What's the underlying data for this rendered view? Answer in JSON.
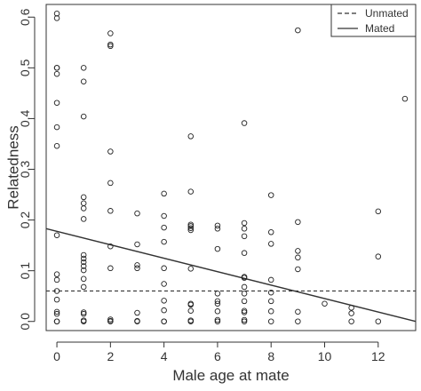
{
  "chart_data": {
    "type": "scatter",
    "title": "",
    "xlabel": "Male age at mate",
    "ylabel": "Relatedness",
    "xlim": [
      -0.4,
      13.4
    ],
    "ylim": [
      -0.018,
      0.625
    ],
    "x_ticks": [
      0,
      2,
      4,
      6,
      8,
      10,
      12
    ],
    "y_ticks": [
      0.0,
      0.1,
      0.2,
      0.3,
      0.4,
      0.5,
      0.6
    ],
    "y_tick_labels": [
      "0.0",
      "0.1",
      "0.2",
      "0.3",
      "0.4",
      "0.5",
      "0.6"
    ],
    "grid": false,
    "legend": {
      "position": "top-right",
      "entries": [
        {
          "label": "Unmated",
          "style": "dashed"
        },
        {
          "label": "Mated",
          "style": "solid"
        }
      ]
    },
    "points": [
      [
        0,
        0.607
      ],
      [
        0,
        0.598
      ],
      [
        0,
        0.5
      ],
      [
        0,
        0.5
      ],
      [
        0,
        0.488
      ],
      [
        0,
        0.431
      ],
      [
        0,
        0.383
      ],
      [
        0,
        0.346
      ],
      [
        0,
        0.17
      ],
      [
        0,
        0.093
      ],
      [
        0,
        0.082
      ],
      [
        0,
        0.06
      ],
      [
        0,
        0.043
      ],
      [
        0,
        0.019
      ],
      [
        0,
        0.015
      ],
      [
        0,
        0.0
      ],
      [
        0,
        0.0
      ],
      [
        1,
        0.5
      ],
      [
        1,
        0.473
      ],
      [
        1,
        0.404
      ],
      [
        1,
        0.245
      ],
      [
        1,
        0.233
      ],
      [
        1,
        0.223
      ],
      [
        1,
        0.202
      ],
      [
        1,
        0.131
      ],
      [
        1,
        0.124
      ],
      [
        1,
        0.117
      ],
      [
        1,
        0.109
      ],
      [
        1,
        0.101
      ],
      [
        1,
        0.084
      ],
      [
        1,
        0.068
      ],
      [
        1,
        0.018
      ],
      [
        1,
        0.015
      ],
      [
        1,
        0.002
      ],
      [
        1,
        0.0
      ],
      [
        2,
        0.568
      ],
      [
        2,
        0.546
      ],
      [
        2,
        0.543
      ],
      [
        2,
        0.335
      ],
      [
        2,
        0.273
      ],
      [
        2,
        0.218
      ],
      [
        2,
        0.148
      ],
      [
        2,
        0.105
      ],
      [
        2,
        0.004
      ],
      [
        2,
        0.001
      ],
      [
        2,
        0.0
      ],
      [
        3,
        0.213
      ],
      [
        3,
        0.152
      ],
      [
        3,
        0.111
      ],
      [
        3,
        0.105
      ],
      [
        3,
        0.017
      ],
      [
        3,
        0.001
      ],
      [
        3,
        0.0
      ],
      [
        4,
        0.252
      ],
      [
        4,
        0.208
      ],
      [
        4,
        0.185
      ],
      [
        4,
        0.157
      ],
      [
        4,
        0.105
      ],
      [
        4,
        0.074
      ],
      [
        4,
        0.041
      ],
      [
        4,
        0.022
      ],
      [
        4,
        0.0
      ],
      [
        4,
        0.0
      ],
      [
        5,
        0.365
      ],
      [
        5,
        0.256
      ],
      [
        5,
        0.191
      ],
      [
        5,
        0.188
      ],
      [
        5,
        0.184
      ],
      [
        5,
        0.18
      ],
      [
        5,
        0.104
      ],
      [
        5,
        0.035
      ],
      [
        5,
        0.033
      ],
      [
        5,
        0.021
      ],
      [
        5,
        0.002
      ],
      [
        5,
        0.0
      ],
      [
        6,
        0.189
      ],
      [
        6,
        0.183
      ],
      [
        6,
        0.143
      ],
      [
        6,
        0.055
      ],
      [
        6,
        0.04
      ],
      [
        6,
        0.035
      ],
      [
        6,
        0.02
      ],
      [
        6,
        0.003
      ],
      [
        6,
        0.0
      ],
      [
        7,
        0.391
      ],
      [
        7,
        0.194
      ],
      [
        7,
        0.183
      ],
      [
        7,
        0.168
      ],
      [
        7,
        0.135
      ],
      [
        7,
        0.088
      ],
      [
        7,
        0.086
      ],
      [
        7,
        0.068
      ],
      [
        7,
        0.055
      ],
      [
        7,
        0.04
      ],
      [
        7,
        0.021
      ],
      [
        7,
        0.018
      ],
      [
        7,
        0.003
      ],
      [
        7,
        0.0
      ],
      [
        8,
        0.249
      ],
      [
        8,
        0.176
      ],
      [
        8,
        0.153
      ],
      [
        8,
        0.082
      ],
      [
        8,
        0.057
      ],
      [
        8,
        0.04
      ],
      [
        8,
        0.02
      ],
      [
        8,
        0.0
      ],
      [
        9,
        0.574
      ],
      [
        9,
        0.196
      ],
      [
        9,
        0.139
      ],
      [
        9,
        0.126
      ],
      [
        9,
        0.103
      ],
      [
        9,
        0.019
      ],
      [
        9,
        0.0
      ],
      [
        10,
        0.035
      ],
      [
        11,
        0.027
      ],
      [
        11,
        0.016
      ],
      [
        11,
        0.0
      ],
      [
        12,
        0.217
      ],
      [
        12,
        0.128
      ],
      [
        12,
        0.0
      ],
      [
        13,
        0.439
      ]
    ],
    "lines": [
      {
        "name": "Unmated",
        "style": "dashed",
        "x": [
          -0.4,
          13.4
        ],
        "y": [
          0.06,
          0.06
        ]
      },
      {
        "name": "Mated",
        "style": "solid",
        "x": [
          -0.4,
          13.4
        ],
        "y": [
          0.183,
          0.0
        ]
      }
    ]
  }
}
